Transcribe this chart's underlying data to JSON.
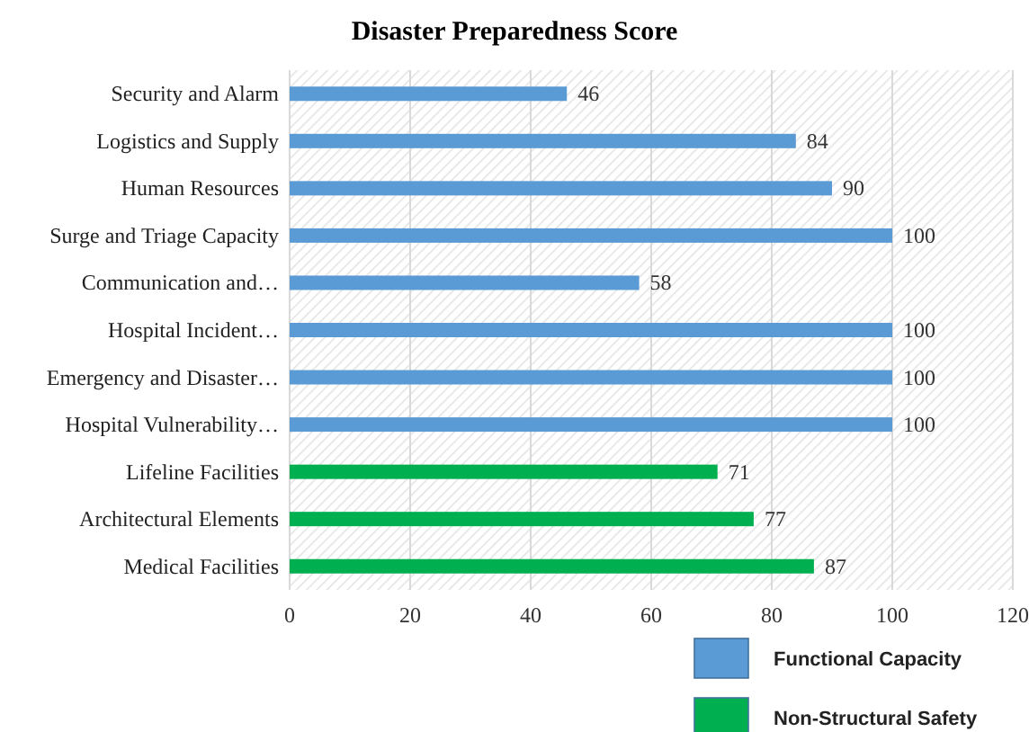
{
  "chart_data": {
    "type": "bar",
    "orientation": "horizontal",
    "title": "Disaster Preparedness Score",
    "categories": [
      "Security and Alarm",
      "Logistics and Supply",
      "Human Resources",
      "Surge and Triage Capacity",
      "Communication and…",
      "Hospital Incident…",
      "Emergency and Disaster…",
      "Hospital Vulnerability…",
      "Lifeline Facilities",
      "Architectural Elements",
      "Medical Facilities"
    ],
    "series": [
      {
        "name": "Functional Capacity",
        "color": "#5b9bd5",
        "values": [
          46,
          84,
          90,
          100,
          58,
          100,
          100,
          100,
          null,
          null,
          null
        ]
      },
      {
        "name": "Non-Structural Safety",
        "color": "#00b050",
        "values": [
          null,
          null,
          null,
          null,
          null,
          null,
          null,
          null,
          71,
          77,
          87
        ]
      }
    ],
    "xlim": [
      0,
      120
    ],
    "xticks": [
      0,
      20,
      40,
      60,
      80,
      100,
      120
    ],
    "grid": "x",
    "data_labels": true,
    "legend": "bottom right"
  }
}
